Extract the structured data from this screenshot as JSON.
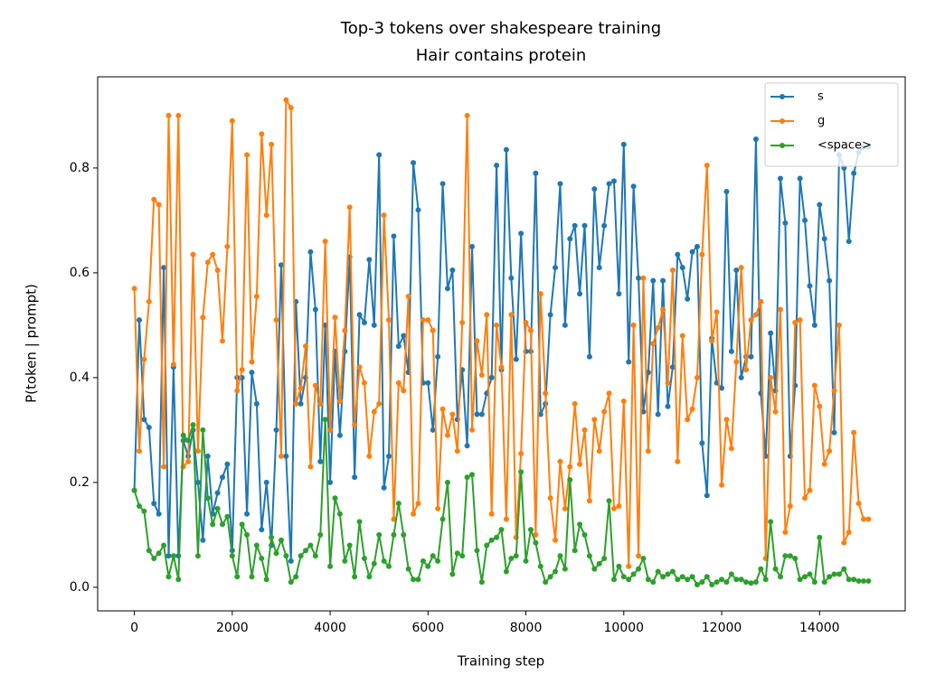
{
  "chart_data": {
    "type": "line",
    "title": "Top-3 tokens over shakespeare training",
    "subtitle": "Hair contains protein",
    "xlabel": "Training step",
    "ylabel": "P(token | prompt)",
    "x": [
      0,
      100,
      200,
      300,
      400,
      500,
      600,
      700,
      800,
      900,
      1000,
      1100,
      1200,
      1300,
      1400,
      1500,
      1600,
      1700,
      1800,
      1900,
      2000,
      2100,
      2200,
      2300,
      2400,
      2500,
      2600,
      2700,
      2800,
      2900,
      3000,
      3100,
      3200,
      3300,
      3400,
      3500,
      3600,
      3700,
      3800,
      3900,
      4000,
      4100,
      4200,
      4300,
      4400,
      4500,
      4600,
      4700,
      4800,
      4900,
      5000,
      5100,
      5200,
      5300,
      5400,
      5500,
      5600,
      5700,
      5800,
      5900,
      6000,
      6100,
      6200,
      6300,
      6400,
      6500,
      6600,
      6700,
      6800,
      6900,
      7000,
      7100,
      7200,
      7300,
      7400,
      7500,
      7600,
      7700,
      7800,
      7900,
      8000,
      8100,
      8200,
      8300,
      8400,
      8500,
      8600,
      8700,
      8800,
      8900,
      9000,
      9100,
      9200,
      9300,
      9400,
      9500,
      9600,
      9700,
      9800,
      9900,
      10000,
      10100,
      10200,
      10300,
      10400,
      10500,
      10600,
      10700,
      10800,
      10900,
      11000,
      11100,
      11200,
      11300,
      11400,
      11500,
      11600,
      11700,
      11800,
      11900,
      12000,
      12100,
      12200,
      12300,
      12400,
      12500,
      12600,
      12700,
      12800,
      12900,
      13000,
      13100,
      13200,
      13300,
      13400,
      13500,
      13600,
      13700,
      13800,
      13900,
      14000,
      14100,
      14200,
      14300,
      14400,
      14500,
      14600,
      14700,
      14800,
      14900,
      15000
    ],
    "series": [
      {
        "name": "s",
        "color": "#1f77b4",
        "values": [
          0.185,
          0.51,
          0.32,
          0.305,
          0.16,
          0.14,
          0.61,
          0.06,
          0.42,
          0.06,
          0.28,
          0.25,
          0.3,
          0.2,
          0.09,
          0.25,
          0.14,
          0.18,
          0.21,
          0.235,
          0.07,
          0.4,
          0.4,
          0.14,
          0.41,
          0.35,
          0.11,
          0.2,
          0.08,
          0.3,
          0.615,
          0.25,
          0.05,
          0.545,
          0.35,
          0.4,
          0.64,
          0.53,
          0.24,
          0.5,
          0.2,
          0.45,
          0.29,
          0.45,
          0.63,
          0.21,
          0.52,
          0.505,
          0.625,
          0.5,
          0.825,
          0.19,
          0.25,
          0.67,
          0.46,
          0.48,
          0.41,
          0.81,
          0.72,
          0.39,
          0.39,
          0.3,
          0.44,
          0.77,
          0.57,
          0.605,
          0.32,
          0.415,
          0.27,
          0.65,
          0.33,
          0.33,
          0.37,
          0.4,
          0.805,
          0.415,
          0.835,
          0.59,
          0.435,
          0.675,
          0.45,
          0.45,
          0.79,
          0.33,
          0.35,
          0.52,
          0.61,
          0.77,
          0.5,
          0.665,
          0.69,
          0.56,
          0.69,
          0.44,
          0.76,
          0.61,
          0.69,
          0.77,
          0.775,
          0.56,
          0.845,
          0.43,
          0.765,
          0.59,
          0.335,
          0.41,
          0.585,
          0.33,
          0.585,
          0.345,
          0.42,
          0.635,
          0.61,
          0.55,
          0.64,
          0.65,
          0.275,
          0.175,
          0.475,
          0.39,
          0.38,
          0.755,
          0.45,
          0.605,
          0.4,
          0.44,
          0.44,
          0.855,
          0.37,
          0.25,
          0.485,
          0.375,
          0.78,
          0.695,
          0.25,
          0.385,
          0.78,
          0.7,
          0.575,
          0.5,
          0.73,
          0.665,
          0.585,
          0.295,
          0.825,
          0.8,
          0.66,
          0.79,
          0.83,
          0.84,
          0.84
        ]
      },
      {
        "name": "g",
        "color": "#ff7f0e",
        "values": [
          0.57,
          0.26,
          0.435,
          0.545,
          0.74,
          0.73,
          0.23,
          0.9,
          0.425,
          0.9,
          0.23,
          0.24,
          0.635,
          0.26,
          0.515,
          0.62,
          0.635,
          0.605,
          0.47,
          0.65,
          0.89,
          0.375,
          0.415,
          0.825,
          0.43,
          0.555,
          0.865,
          0.71,
          0.845,
          0.51,
          0.25,
          0.93,
          0.915,
          0.35,
          0.38,
          0.46,
          0.23,
          0.385,
          0.35,
          0.66,
          0.3,
          0.515,
          0.355,
          0.49,
          0.725,
          0.31,
          0.42,
          0.39,
          0.25,
          0.335,
          0.35,
          0.71,
          0.51,
          0.13,
          0.39,
          0.375,
          0.555,
          0.14,
          0.16,
          0.51,
          0.51,
          0.49,
          0.15,
          0.34,
          0.29,
          0.33,
          0.26,
          0.505,
          0.9,
          0.3,
          0.47,
          0.405,
          0.52,
          0.14,
          0.5,
          0.42,
          0.13,
          0.52,
          0.095,
          0.255,
          0.505,
          0.49,
          0.1,
          0.56,
          0.37,
          0.17,
          0.09,
          0.24,
          0.15,
          0.23,
          0.35,
          0.235,
          0.3,
          0.165,
          0.32,
          0.26,
          0.335,
          0.37,
          0.15,
          0.155,
          0.355,
          0.04,
          0.5,
          0.06,
          0.59,
          0.26,
          0.465,
          0.495,
          0.53,
          0.39,
          0.605,
          0.24,
          0.48,
          0.32,
          0.34,
          0.4,
          0.635,
          0.805,
          0.47,
          0.525,
          0.195,
          0.32,
          0.265,
          0.43,
          0.61,
          0.415,
          0.51,
          0.52,
          0.545,
          0.055,
          0.4,
          0.335,
          0.53,
          0.105,
          0.155,
          0.505,
          0.51,
          0.17,
          0.185,
          0.385,
          0.345,
          0.235,
          0.26,
          0.375,
          0.5,
          0.085,
          0.105,
          0.295,
          0.16,
          0.13,
          0.13
        ]
      },
      {
        "name": "<space>",
        "color": "#2ca02c",
        "values": [
          0.185,
          0.155,
          0.145,
          0.07,
          0.055,
          0.065,
          0.08,
          0.02,
          0.06,
          0.015,
          0.29,
          0.28,
          0.31,
          0.06,
          0.3,
          0.17,
          0.12,
          0.15,
          0.12,
          0.135,
          0.06,
          0.02,
          0.12,
          0.1,
          0.02,
          0.08,
          0.055,
          0.015,
          0.095,
          0.065,
          0.09,
          0.06,
          0.01,
          0.02,
          0.06,
          0.07,
          0.08,
          0.06,
          0.1,
          0.32,
          0.04,
          0.17,
          0.14,
          0.05,
          0.08,
          0.02,
          0.125,
          0.055,
          0.02,
          0.045,
          0.1,
          0.05,
          0.04,
          0.1,
          0.16,
          0.1,
          0.035,
          0.015,
          0.015,
          0.05,
          0.04,
          0.06,
          0.05,
          0.13,
          0.2,
          0.025,
          0.065,
          0.06,
          0.21,
          0.215,
          0.07,
          0.01,
          0.08,
          0.09,
          0.095,
          0.11,
          0.03,
          0.055,
          0.06,
          0.22,
          0.05,
          0.11,
          0.085,
          0.04,
          0.01,
          0.02,
          0.03,
          0.06,
          0.035,
          0.205,
          0.07,
          0.12,
          0.1,
          0.06,
          0.035,
          0.045,
          0.055,
          0.165,
          0.015,
          0.04,
          0.02,
          0.015,
          0.025,
          0.035,
          0.055,
          0.015,
          0.01,
          0.03,
          0.02,
          0.025,
          0.03,
          0.015,
          0.02,
          0.015,
          0.02,
          0.005,
          0.01,
          0.02,
          0.005,
          0.01,
          0.015,
          0.01,
          0.025,
          0.015,
          0.015,
          0.01,
          0.008,
          0.01,
          0.035,
          0.015,
          0.125,
          0.035,
          0.02,
          0.06,
          0.06,
          0.055,
          0.015,
          0.02,
          0.025,
          0.01,
          0.095,
          0.01,
          0.02,
          0.025,
          0.025,
          0.035,
          0.015,
          0.015,
          0.012,
          0.012,
          0.012
        ]
      }
    ],
    "xlim": [
      -750,
      15750
    ],
    "ylim": [
      -0.045,
      0.974
    ],
    "xticks": [
      0,
      2000,
      4000,
      6000,
      8000,
      10000,
      12000,
      14000
    ],
    "yticks": [
      {
        "value": 0,
        "label": "0.0"
      },
      0.2,
      0.4,
      0.6,
      0.8
    ],
    "legend": "upper right",
    "grid": false
  }
}
